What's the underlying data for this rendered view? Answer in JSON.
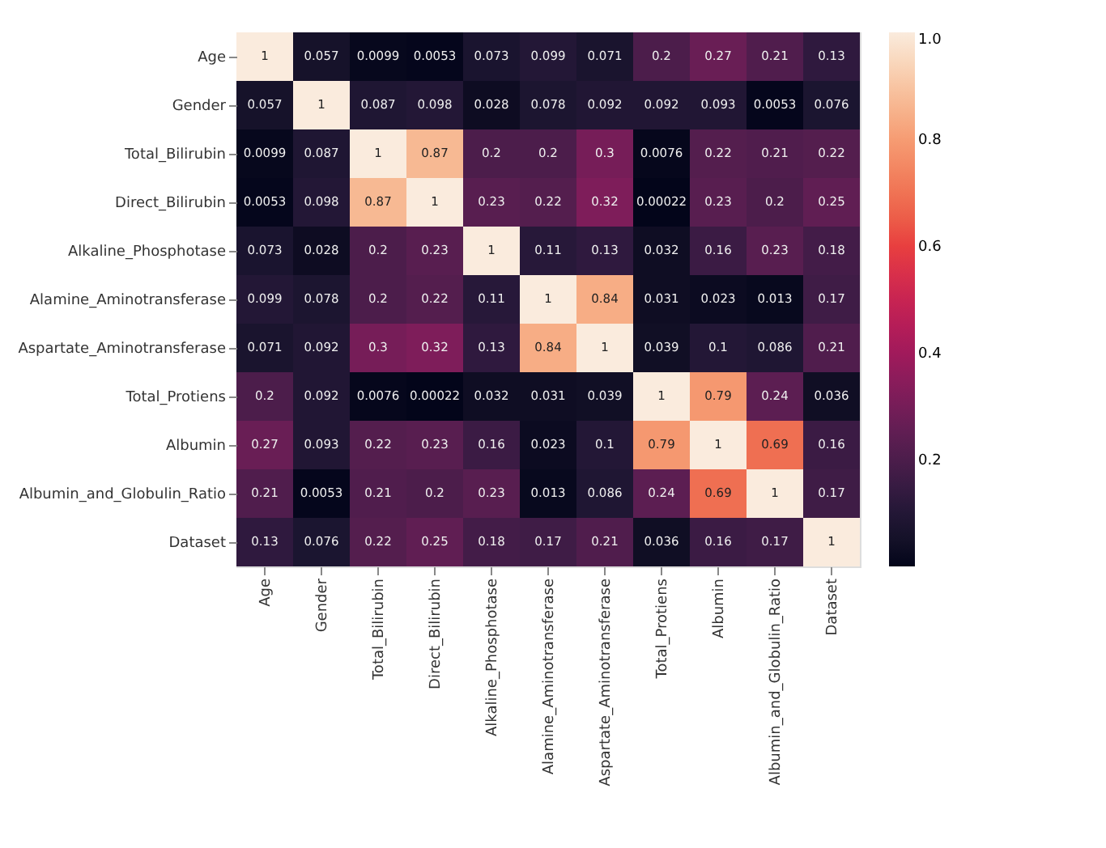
{
  "chart_data": {
    "type": "heatmap",
    "categories": [
      "Age",
      "Gender",
      "Total_Bilirubin",
      "Direct_Bilirubin",
      "Alkaline_Phosphotase",
      "Alamine_Aminotransferase",
      "Aspartate_Aminotransferase",
      "Total_Protiens",
      "Albumin",
      "Albumin_and_Globulin_Ratio",
      "Dataset"
    ],
    "y_categories": [
      "Age",
      "Gender",
      "Total_Bilirubin",
      "Direct_Bilirubin",
      "Alkaline_Phosphotase",
      "Alamine_Aminotransferase",
      "Aspartate_Aminotransferase",
      "Total_Protiens",
      "Albumin",
      "Albumin_and_Globulin_Ratio",
      "Dataset"
    ],
    "cells": [
      [
        1,
        0.057,
        0.0099,
        0.0053,
        0.073,
        0.099,
        0.071,
        0.2,
        0.27,
        0.21,
        0.13
      ],
      [
        0.057,
        1,
        0.087,
        0.098,
        0.028,
        0.078,
        0.092,
        0.092,
        0.093,
        0.0053,
        0.076
      ],
      [
        0.0099,
        0.087,
        1,
        0.87,
        0.2,
        0.2,
        0.3,
        0.0076,
        0.22,
        0.21,
        0.22
      ],
      [
        0.0053,
        0.098,
        0.87,
        1,
        0.23,
        0.22,
        0.32,
        0.00022,
        0.23,
        0.2,
        0.25
      ],
      [
        0.073,
        0.028,
        0.2,
        0.23,
        1,
        0.11,
        0.13,
        0.032,
        0.16,
        0.23,
        0.18
      ],
      [
        0.099,
        0.078,
        0.2,
        0.22,
        0.11,
        1,
        0.84,
        0.031,
        0.023,
        0.013,
        0.17
      ],
      [
        0.071,
        0.092,
        0.3,
        0.32,
        0.13,
        0.84,
        1,
        0.039,
        0.1,
        0.086,
        0.21
      ],
      [
        0.2,
        0.092,
        0.0076,
        0.00022,
        0.032,
        0.031,
        0.039,
        1,
        0.79,
        0.24,
        0.036
      ],
      [
        0.27,
        0.093,
        0.22,
        0.23,
        0.16,
        0.023,
        0.1,
        0.79,
        1,
        0.69,
        0.16
      ],
      [
        0.21,
        0.0053,
        0.21,
        0.2,
        0.23,
        0.013,
        0.086,
        0.24,
        0.69,
        1,
        0.17
      ],
      [
        0.13,
        0.076,
        0.22,
        0.25,
        0.18,
        0.17,
        0.21,
        0.036,
        0.16,
        0.17,
        1
      ]
    ],
    "data_labels": true,
    "clim": [
      0,
      1
    ],
    "cticks": [
      0.2,
      0.4,
      0.6,
      0.8,
      {
        "value": 1,
        "label": "1.0"
      }
    ],
    "colors": [
      "#03051a",
      "#4c1d4b",
      "#a11a5b",
      "#e83f3f",
      "#f69c73",
      "#faebdd"
    ]
  }
}
